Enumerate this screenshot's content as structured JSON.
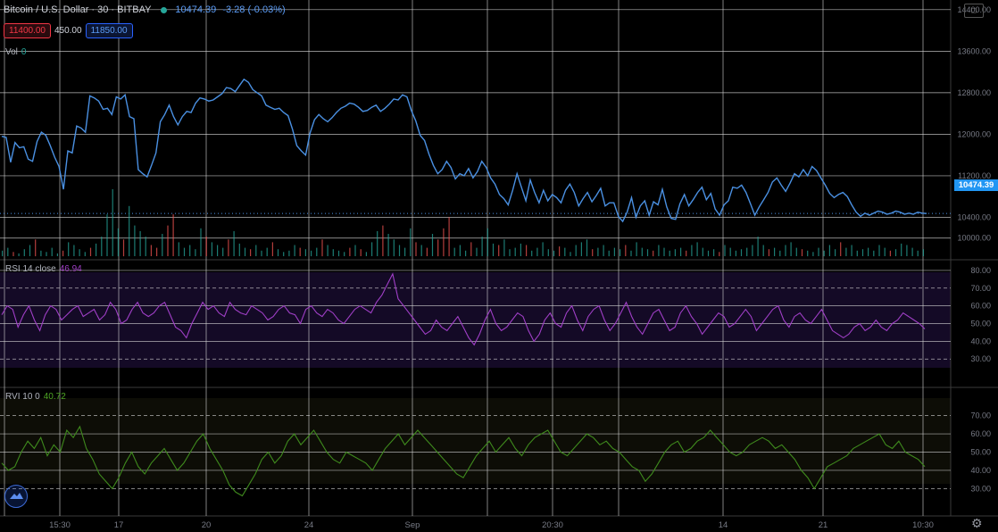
{
  "header": {
    "symbol": "Bitcoin / U.S. Dollar · 30 · BITBAY",
    "last": "10474.39",
    "change": "-3.28 (-0.03%)",
    "bid": "11400.00",
    "spread": "450.00",
    "ask": "11850.00"
  },
  "current_price_tag": "10474.39",
  "colors": {
    "price": "#4a90e2",
    "vol_up": "#26a69a",
    "vol_down": "#ef5350",
    "rsi": "#a03fc7",
    "rvi": "#3f8a1d",
    "rsi_bg": "#140a26",
    "rvi_bg": "#0d0d06",
    "grid": "#d8d8d8",
    "cur_tag": "#2196f3"
  },
  "chart_data": [
    {
      "type": "line",
      "title": "Bitcoin / U.S. Dollar · 30 · BITBAY",
      "x_tick_labels": [
        "",
        "15:30",
        "17",
        "20",
        "",
        "24",
        "Sep",
        "",
        "20:30",
        "",
        "",
        "14",
        "",
        "21",
        "",
        "10:30"
      ],
      "ylim": [
        9600,
        14500
      ],
      "y_tick_labels": [
        "14400.00",
        "13600.00",
        "12800.00",
        "12000.00",
        "11200.00",
        "10400.00",
        "10000.00"
      ],
      "y_ticks": [
        14400,
        13600,
        12800,
        12000,
        11200,
        10400,
        10000
      ],
      "current_value": 10474.39,
      "series": [
        {
          "values": [
            11960,
            11940,
            11460,
            11840,
            11740,
            11760,
            11520,
            11480,
            11860,
            12040,
            11980,
            11780,
            11560,
            11380,
            10940,
            11680,
            11640,
            12160,
            12120,
            12040,
            12740,
            12700,
            12640,
            12480,
            12500,
            12380,
            12720,
            12680,
            12760,
            12340,
            12300,
            11320,
            11240,
            11180,
            11400,
            11640,
            12240,
            12380,
            12560,
            12340,
            12180,
            12340,
            12440,
            12420,
            12600,
            12700,
            12680,
            12640,
            12660,
            12720,
            12780,
            12900,
            12880,
            12820,
            12940,
            13060,
            13000,
            12860,
            12800,
            12740,
            12560,
            12520,
            12480,
            12500,
            12420,
            12360,
            12100,
            11780,
            11680,
            11600,
            12020,
            12280,
            12380,
            12300,
            12240,
            12320,
            12420,
            12500,
            12540,
            12600,
            12580,
            12520,
            12440,
            12460,
            12520,
            12560,
            12440,
            12500,
            12580,
            12680,
            12660,
            12760,
            12720,
            12460,
            12260,
            11980,
            11880,
            11620,
            11400,
            11240,
            11320,
            11480,
            11360,
            11140,
            11240,
            11200,
            11340,
            11160,
            11280,
            11480,
            11360,
            11160,
            11040,
            10840,
            10760,
            10640,
            10920,
            11240,
            10980,
            10720,
            11120,
            10880,
            10680,
            10920,
            10720,
            10840,
            10780,
            10680,
            10920,
            11040,
            10880,
            10620,
            10760,
            10880,
            10700,
            10820,
            10960,
            10620,
            10680,
            10680,
            10420,
            10320,
            10500,
            10780,
            10400,
            10620,
            10720,
            10440,
            10700,
            10640,
            10940,
            10600,
            10380,
            10360,
            10660,
            10840,
            10620,
            10740,
            10880,
            10980,
            10740,
            10860,
            10560,
            10440,
            10640,
            10720,
            10980,
            10960,
            11020,
            10880,
            10660,
            10440,
            10600,
            10740,
            10880,
            11080,
            11160,
            11020,
            10900,
            11060,
            11240,
            11180,
            11320,
            11200,
            11380,
            11300,
            11160,
            11020,
            10860,
            10780,
            10840,
            10880,
            10800,
            10640,
            10500,
            10420,
            10480,
            10440,
            10480,
            10520,
            10500,
            10460,
            10480,
            10520,
            10500,
            10460,
            10480,
            10460,
            10500,
            10480,
            10474
          ]
        }
      ]
    },
    {
      "type": "bar",
      "title": "Vol",
      "value_label": "0",
      "up_color": "#26a69a",
      "down_color": "#ef5350",
      "values": [
        4,
        6,
        3,
        2,
        5,
        8,
        12,
        4,
        3,
        6,
        2,
        4,
        10,
        8,
        5,
        3,
        6,
        9,
        14,
        30,
        48,
        20,
        12,
        36,
        22,
        18,
        14,
        8,
        6,
        16,
        22,
        30,
        10,
        6,
        8,
        5,
        20,
        14,
        10,
        8,
        6,
        12,
        18,
        9,
        6,
        5,
        8,
        4,
        6,
        10,
        5,
        3,
        4,
        8,
        6,
        5,
        4,
        6,
        12,
        8,
        5,
        4,
        3,
        6,
        8,
        5,
        3,
        10,
        18,
        22,
        16,
        12,
        8,
        6,
        20,
        10,
        8,
        6,
        16,
        12,
        20,
        28,
        6,
        8,
        4,
        10,
        6,
        14,
        20,
        9,
        8,
        12,
        5,
        6,
        9,
        8,
        4,
        6,
        10,
        5,
        4,
        7,
        6,
        3,
        8,
        10,
        12,
        5,
        6,
        8,
        4,
        6,
        5,
        8,
        4,
        10,
        6,
        5,
        4,
        8,
        6,
        4,
        5,
        6,
        4,
        8,
        10,
        6,
        4,
        5,
        3,
        8,
        6,
        4,
        5,
        6,
        8,
        14,
        8,
        5,
        6,
        4,
        8,
        10,
        6,
        5,
        4,
        3,
        6,
        4,
        8,
        5,
        10,
        6,
        8,
        4,
        5,
        6,
        4,
        8,
        6,
        4,
        5,
        9,
        8,
        6,
        4,
        5
      ],
      "down": [
        false,
        false,
        true,
        false,
        false,
        false,
        true,
        false,
        false,
        false,
        false,
        true,
        false,
        false,
        false,
        false,
        true,
        false,
        false,
        false,
        false,
        false,
        true,
        false,
        false,
        false,
        false,
        true,
        true,
        false,
        true,
        true,
        false,
        false,
        false,
        false,
        false,
        true,
        false,
        false,
        false,
        true,
        false,
        false,
        false,
        true,
        false,
        false,
        false,
        true,
        false,
        false,
        false,
        false,
        true,
        false,
        false,
        false,
        true,
        false,
        false,
        false,
        false,
        true,
        false,
        true,
        false,
        false,
        false,
        true,
        false,
        false,
        false,
        false,
        false,
        true,
        false,
        true,
        false,
        true,
        true,
        true,
        false,
        false,
        false,
        true,
        false,
        false,
        false,
        false,
        true,
        false,
        false,
        false,
        false,
        true,
        false,
        false,
        false,
        false,
        false,
        true,
        false,
        false,
        false,
        false,
        false,
        true,
        false,
        false,
        false,
        false,
        false,
        true,
        false,
        false,
        false,
        false,
        true,
        false,
        false,
        false,
        false,
        false,
        true,
        false,
        false,
        false,
        false,
        false,
        true,
        false,
        false,
        false,
        false,
        false,
        false,
        false,
        false,
        true,
        false,
        false,
        false,
        false,
        false,
        true,
        false,
        false,
        false,
        false,
        false,
        false,
        true,
        false,
        false,
        false,
        false,
        false,
        false,
        false,
        false,
        true,
        false,
        false,
        false,
        false,
        false,
        false,
        false,
        false
      ]
    },
    {
      "type": "line",
      "title": "RSI 14 close",
      "value_label": "46.94",
      "ylim": [
        15,
        85
      ],
      "y_tick_labels": [
        "80.00",
        "70.00",
        "60.00",
        "50.00",
        "40.00",
        "30.00"
      ],
      "y_ticks": [
        80,
        70,
        60,
        50,
        40,
        30
      ],
      "band": [
        30,
        70
      ],
      "series": [
        {
          "values": [
            55,
            60,
            58,
            48,
            55,
            60,
            52,
            46,
            55,
            60,
            58,
            52,
            55,
            58,
            60,
            54,
            56,
            58,
            52,
            55,
            62,
            58,
            50,
            52,
            58,
            62,
            56,
            54,
            56,
            60,
            62,
            55,
            48,
            46,
            42,
            50,
            56,
            62,
            58,
            60,
            56,
            54,
            62,
            58,
            56,
            55,
            60,
            58,
            56,
            52,
            54,
            58,
            60,
            56,
            55,
            50,
            58,
            60,
            56,
            54,
            58,
            56,
            52,
            50,
            54,
            58,
            60,
            58,
            56,
            62,
            66,
            72,
            78,
            64,
            60,
            56,
            52,
            48,
            44,
            46,
            52,
            48,
            46,
            50,
            54,
            48,
            42,
            38,
            44,
            52,
            58,
            50,
            46,
            48,
            52,
            56,
            54,
            46,
            40,
            44,
            52,
            56,
            50,
            48,
            56,
            60,
            52,
            46,
            54,
            58,
            60,
            52,
            46,
            50,
            56,
            62,
            54,
            48,
            44,
            50,
            56,
            58,
            52,
            46,
            48,
            56,
            60,
            54,
            50,
            44,
            48,
            52,
            56,
            54,
            48,
            50,
            54,
            58,
            54,
            46,
            50,
            54,
            58,
            60,
            52,
            48,
            54,
            56,
            52,
            50,
            54,
            58,
            52,
            46,
            44,
            42,
            44,
            48,
            50,
            46,
            48,
            52,
            48,
            46,
            50,
            52,
            56,
            54,
            52,
            50,
            47
          ]
        }
      ]
    },
    {
      "type": "line",
      "title": "RVI 10 0",
      "value_label": "40.72",
      "ylim": [
        15,
        85
      ],
      "y_tick_labels": [
        "70.00",
        "60.00",
        "50.00",
        "40.00",
        "30.00"
      ],
      "y_ticks": [
        70,
        60,
        50,
        40,
        30
      ],
      "series": [
        {
          "values": [
            44,
            40,
            42,
            50,
            56,
            52,
            58,
            48,
            54,
            50,
            62,
            58,
            64,
            52,
            46,
            38,
            34,
            30,
            36,
            44,
            50,
            42,
            38,
            44,
            48,
            52,
            46,
            40,
            44,
            50,
            56,
            60,
            52,
            46,
            40,
            32,
            28,
            26,
            32,
            38,
            46,
            50,
            44,
            48,
            56,
            60,
            54,
            58,
            62,
            56,
            50,
            46,
            44,
            50,
            48,
            46,
            44,
            40,
            46,
            52,
            56,
            60,
            54,
            58,
            62,
            58,
            54,
            50,
            46,
            42,
            38,
            36,
            42,
            48,
            52,
            56,
            50,
            54,
            58,
            52,
            48,
            54,
            58,
            60,
            62,
            56,
            50,
            48,
            52,
            56,
            60,
            58,
            54,
            56,
            52,
            50,
            46,
            42,
            40,
            34,
            38,
            44,
            50,
            54,
            56,
            50,
            52,
            56,
            58,
            62,
            58,
            54,
            50,
            48,
            50,
            54,
            56,
            58,
            56,
            52,
            54,
            50,
            46,
            40,
            36,
            30,
            36,
            42,
            44,
            46,
            48,
            52,
            54,
            56,
            58,
            60,
            54,
            52,
            56,
            50,
            48,
            46,
            42
          ],
          "_w": 1
        }
      ]
    }
  ]
}
